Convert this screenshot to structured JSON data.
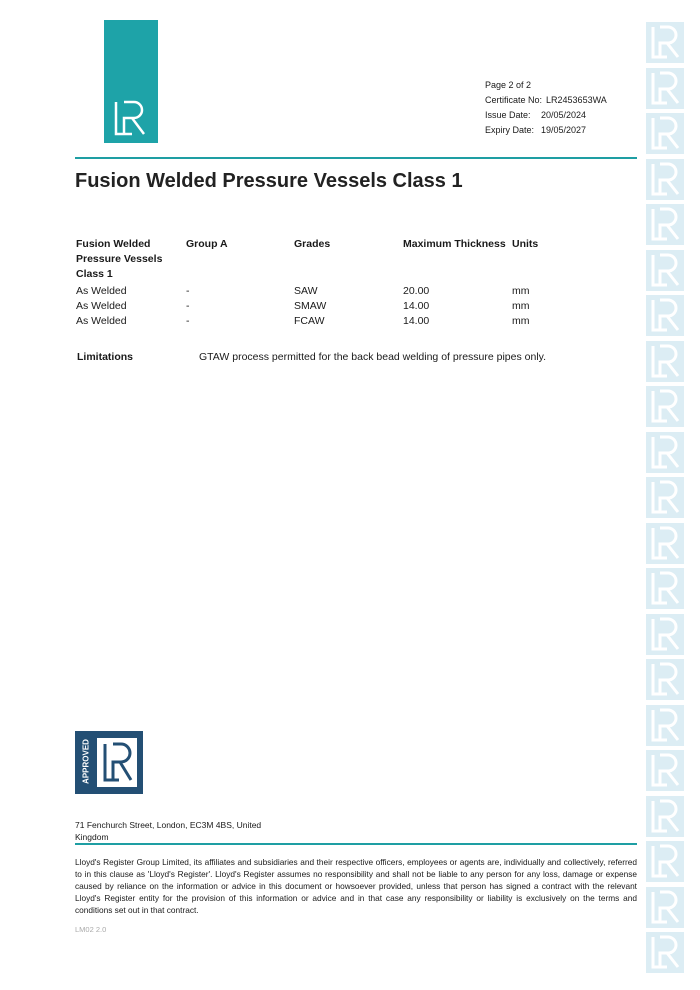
{
  "header": {
    "page": "Page 2 of 2",
    "certificate_label": "Certificate No:",
    "certificate_no": "LR2453653WA",
    "issue_label": "Issue Date:",
    "issue_date": "20/05/2024",
    "expiry_label": "Expiry Date:",
    "expiry_date": "19/05/2027"
  },
  "title": "Fusion Welded Pressure Vessels Class 1",
  "table": {
    "headers": [
      "Fusion Welded Pressure Vessels Class 1",
      "Group A",
      "Grades",
      "Maximum Thickness",
      "Units"
    ],
    "rows": [
      [
        "As Welded",
        "-",
        "SAW",
        "20.00",
        "mm"
      ],
      [
        "As Welded",
        "-",
        "SMAW",
        "14.00",
        "mm"
      ],
      [
        "As Welded",
        "-",
        "FCAW",
        "14.00",
        "mm"
      ]
    ]
  },
  "limitations": {
    "label": "Limitations",
    "text": "GTAW process permitted for the back bead welding of pressure pipes only."
  },
  "approved_logo": {
    "text": "APPROVED",
    "mark": "LR"
  },
  "brand_colors": {
    "teal": "#1ea3a8",
    "navy": "#234f74"
  },
  "address": "71 Fenchurch Street, London, EC3M 4BS, United Kingdom",
  "disclaimer": "Lloyd's Register Group Limited, its affiliates and subsidiaries and their respective officers, employees or agents are, individually and collectively, referred to in this clause as 'Lloyd's Register'. Lloyd's Register assumes no responsibility and shall not be liable to any person for any loss, damage or expense caused by reliance on the information or advice in this document or howsoever provided, unless that person has signed a contract with the relevant Lloyd's Register entity for the provision of this information or advice and in that case any responsibility or liability is exclusively on the terms and conditions set out in that contract.",
  "form_code": "LM02 2.0"
}
